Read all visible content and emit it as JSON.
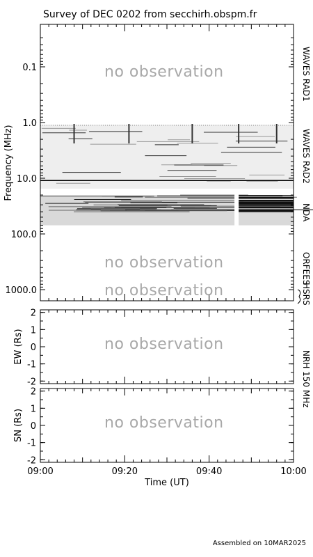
{
  "title": "Survey of  DEC 0202 from secchirh.obspm.fr",
  "footer": "Assembled on 10MAR2025",
  "placeholder_text": "no observation",
  "chart_data": [
    {
      "type": "heatmap",
      "ylabel": "Frequency (MHz)",
      "yscale": "log",
      "ylim": [
        0.02,
        1500
      ],
      "ytick_labels": [
        "0.1",
        "1.0",
        "10.0",
        "100.0",
        "1000.0"
      ],
      "yticks": [
        0.1,
        1,
        10,
        100,
        1000
      ],
      "xlim": [
        "09:00",
        "10:00"
      ],
      "bands": [
        {
          "name": "WAVES RAD1",
          "range_mhz": [
            0.02,
            1.0
          ],
          "status": "no observation"
        },
        {
          "name": "WAVES RAD2",
          "range_mhz": [
            1.0,
            14.0
          ],
          "status": "data"
        },
        {
          "name": "NDA",
          "range_mhz": [
            20.0,
            70.0
          ],
          "status": "data",
          "gap": [
            "09:46",
            "09:47"
          ]
        },
        {
          "name": "ORFEES",
          "range_mhz": [
            140,
            1000
          ],
          "status": "no observation"
        },
        {
          "name": "HSRS",
          "range_mhz": [
            1000,
            1500
          ],
          "status": "no observation"
        }
      ]
    },
    {
      "type": "scatter",
      "ylabel": "EW (Rs)",
      "ylim": [
        -2,
        2
      ],
      "ytick_labels": [
        "2",
        "1",
        "0",
        "-1",
        "-2"
      ],
      "instrument": "NRH 150 MHz",
      "status": "no observation",
      "series": []
    },
    {
      "type": "scatter",
      "ylabel": "SN (Rs)",
      "ylim": [
        -2,
        2
      ],
      "ytick_labels": [
        "2",
        "1",
        "0",
        "-1",
        "-2"
      ],
      "instrument": "NRH 150 MHz",
      "status": "no observation",
      "xlabel": "Time (UT)",
      "xtick_labels": [
        "09:00",
        "09:20",
        "09:40",
        "10:00"
      ],
      "series": []
    }
  ],
  "labels": {
    "waves_rad1": "WAVES RAD1",
    "waves_rad2": "WAVES RAD2",
    "nda": "NDA",
    "orfees": "ORFEES",
    "hsrs": "HSRS",
    "nrh": "NRH 150 MHz"
  }
}
